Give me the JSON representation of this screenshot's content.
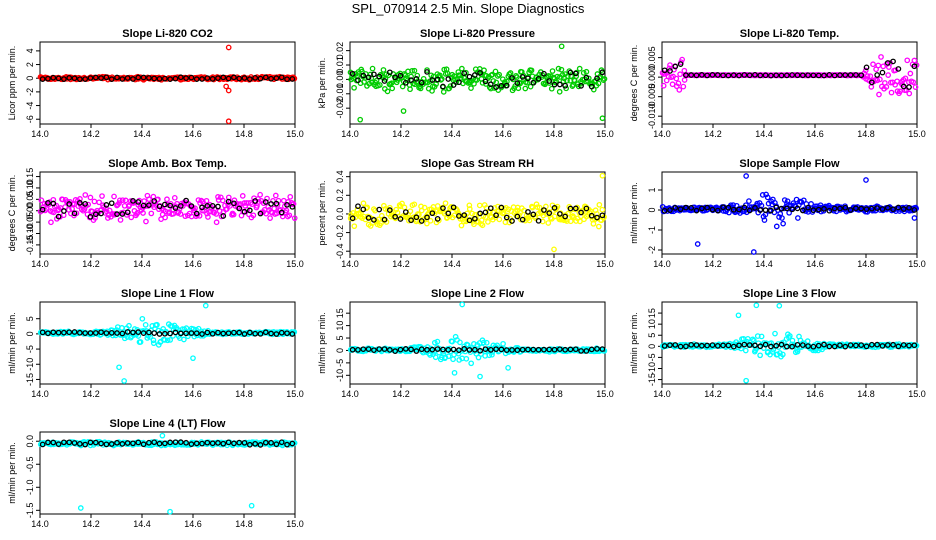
{
  "figure": {
    "title": "SPL_070914  2.5 Min. Slope Diagnostics"
  },
  "colors": {
    "black": "#000000",
    "red": "#ff0000",
    "green": "#00cc00",
    "magenta": "#ff00ff",
    "yellow": "#ffff00",
    "blue": "#0000ff",
    "cyan": "#00ffff"
  },
  "chart_data": [
    {
      "type": "scatter",
      "title": "Slope Li-820 CO2",
      "ylabel": "Licor ppm per min.",
      "xlim": [
        14.0,
        15.0
      ],
      "xticks": [
        "14.0",
        "14.2",
        "14.4",
        "14.6",
        "14.8",
        "15.0"
      ],
      "ylim": [
        -6.7,
        5.3
      ],
      "yticks": [
        -6,
        -4,
        -2,
        0,
        2,
        4
      ],
      "ytick_labels": [
        "-6",
        "-4",
        "-2",
        "0",
        "2",
        "4"
      ],
      "color": "red",
      "pattern": "flat",
      "base": 0,
      "noise": 0.25,
      "ends": 0,
      "outliers": [
        [
          14.74,
          4.5
        ],
        [
          14.74,
          -1.8
        ],
        [
          14.74,
          -6.3
        ],
        [
          14.73,
          -1.2
        ]
      ]
    },
    {
      "type": "scatter",
      "title": "Slope Li-820 Pressure",
      "ylabel": "kPa per min.",
      "xlim": [
        14.0,
        15.0
      ],
      "xticks": [
        "14.0",
        "14.2",
        "14.4",
        "14.6",
        "14.8",
        "15.0"
      ],
      "ylim": [
        -0.031,
        0.026
      ],
      "yticks": [
        -0.02,
        -0.01,
        0.0,
        0.01,
        0.02
      ],
      "ytick_labels": [
        "-0.02",
        "-0.01",
        "0.00",
        "0.01",
        "0.02"
      ],
      "color": "green",
      "pattern": "noisy",
      "base": 0,
      "noise": 0.009,
      "ends": 0,
      "outliers": [
        [
          14.04,
          -0.028
        ],
        [
          14.83,
          0.023
        ],
        [
          14.99,
          -0.027
        ],
        [
          14.21,
          -0.022
        ]
      ]
    },
    {
      "type": "scatter",
      "title": "Slope Li-820 Temp.",
      "ylabel": "degrees C per min.",
      "xlim": [
        14.0,
        15.0
      ],
      "xticks": [
        "14.0",
        "14.2",
        "14.4",
        "14.6",
        "14.8",
        "15.0"
      ],
      "ylim": [
        -0.012,
        0.009
      ],
      "yticks": [
        -0.01,
        -0.005,
        0.0,
        0.005
      ],
      "ytick_labels": [
        "-0.010",
        "-0.005",
        "0.000",
        "0.005"
      ],
      "color": "magenta",
      "pattern": "ends",
      "base": 0.0005,
      "noise": 0.0001,
      "ends": 0.006,
      "outliers": []
    },
    {
      "type": "scatter",
      "title": "Slope Amb. Box Temp.",
      "ylabel": "degrees C per min.",
      "xlim": [
        14.0,
        15.0
      ],
      "xticks": [
        "14.0",
        "14.2",
        "14.4",
        "14.6",
        "14.8",
        "15.0"
      ],
      "ylim": [
        -0.19,
        0.17
      ],
      "yticks": [
        -0.15,
        -0.1,
        -0.05,
        0.0,
        0.05,
        0.1,
        0.15
      ],
      "ytick_labels": [
        "-0.15",
        "-0.10",
        "-0.05",
        "0.00",
        "0.05",
        "0.10",
        "0.15"
      ],
      "color": "magenta",
      "pattern": "noisy",
      "base": 0.01,
      "noise": 0.065,
      "ends": 0,
      "outliers": []
    },
    {
      "type": "scatter",
      "title": "Slope Gas Stream RH",
      "ylabel": "percent per min.",
      "xlim": [
        14.0,
        15.0
      ],
      "xticks": [
        "14.0",
        "14.2",
        "14.4",
        "14.6",
        "14.8",
        "15.0"
      ],
      "ylim": [
        -0.43,
        0.45
      ],
      "yticks": [
        -0.4,
        -0.2,
        0.0,
        0.2,
        0.4
      ],
      "ytick_labels": [
        "-0.4",
        "-0.2",
        "0.0",
        "0.2",
        "0.4"
      ],
      "color": "yellow",
      "pattern": "noisy",
      "base": 0.0,
      "noise": 0.14,
      "ends": 0,
      "outliers": [
        [
          14.99,
          0.41
        ],
        [
          14.8,
          -0.38
        ]
      ]
    },
    {
      "type": "scatter",
      "title": "Slope Sample Flow",
      "ylabel": "ml/min per min.",
      "xlim": [
        14.0,
        15.0
      ],
      "xticks": [
        "14.0",
        "14.2",
        "14.4",
        "14.6",
        "14.8",
        "15.0"
      ],
      "ylim": [
        -2.2,
        1.9
      ],
      "yticks": [
        -2,
        -1,
        0,
        1
      ],
      "ytick_labels": [
        "-2",
        "-1",
        "0",
        "1"
      ],
      "color": "blue",
      "pattern": "center",
      "base": 0.05,
      "noise": 0.15,
      "ends": 0.9,
      "outliers": [
        [
          14.33,
          1.7
        ],
        [
          14.36,
          -2.1
        ],
        [
          14.14,
          -1.7
        ],
        [
          14.8,
          1.5
        ],
        [
          14.99,
          -0.4
        ]
      ]
    },
    {
      "type": "scatter",
      "title": "Slope Line 1 Flow",
      "ylabel": "ml/min per min.",
      "xlim": [
        14.0,
        15.0
      ],
      "xticks": [
        "14.0",
        "14.2",
        "14.4",
        "14.6",
        "14.8",
        "15.0"
      ],
      "ylim": [
        -16.5,
        10.5
      ],
      "yticks": [
        -15,
        -10,
        -5,
        0,
        5
      ],
      "ytick_labels": [
        "-15",
        "-10",
        "-5",
        "0",
        "5"
      ],
      "color": "cyan",
      "pattern": "center",
      "base": 0.3,
      "noise": 0.6,
      "ends": 5.5,
      "outliers": [
        [
          14.65,
          9.3
        ],
        [
          14.33,
          -15.5
        ],
        [
          14.31,
          -11
        ],
        [
          14.6,
          -8
        ]
      ]
    },
    {
      "type": "scatter",
      "title": "Slope Line 2 Flow",
      "ylabel": "ml/min per min.",
      "xlim": [
        14.0,
        15.0
      ],
      "xticks": [
        "14.0",
        "14.2",
        "14.4",
        "14.6",
        "14.8",
        "15.0"
      ],
      "ylim": [
        -13.5,
        19.5
      ],
      "yticks": [
        -10,
        -5,
        0,
        5,
        10,
        15
      ],
      "ytick_labels": [
        "-10",
        "-5",
        "0",
        "5",
        "10",
        "15"
      ],
      "color": "cyan",
      "pattern": "center",
      "base": 0.2,
      "noise": 0.8,
      "ends": 6.5,
      "outliers": [
        [
          14.44,
          18.5
        ],
        [
          14.51,
          -10.5
        ],
        [
          14.41,
          -9
        ],
        [
          14.62,
          -7
        ]
      ]
    },
    {
      "type": "scatter",
      "title": "Slope Line 3 Flow",
      "ylabel": "ml/min per min.",
      "xlim": [
        14.0,
        15.0
      ],
      "xticks": [
        "14.0",
        "14.2",
        "14.4",
        "14.6",
        "14.8",
        "15.0"
      ],
      "ylim": [
        -17,
        20
      ],
      "yticks": [
        -15,
        -10,
        -5,
        0,
        5,
        10,
        15
      ],
      "ytick_labels": [
        "-15",
        "-10",
        "-5",
        "0",
        "5",
        "10",
        "15"
      ],
      "color": "cyan",
      "pattern": "center",
      "base": 0.3,
      "noise": 0.8,
      "ends": 7,
      "outliers": [
        [
          14.33,
          -15.5
        ],
        [
          14.37,
          18.5
        ],
        [
          14.46,
          18.3
        ],
        [
          14.3,
          14
        ]
      ]
    },
    {
      "type": "scatter",
      "title": "Slope Line 4 (LT) Flow",
      "ylabel": "ml/min per min.",
      "xlim": [
        14.0,
        15.0
      ],
      "xticks": [
        "14.0",
        "14.2",
        "14.4",
        "14.6",
        "14.8",
        "15.0"
      ],
      "ylim": [
        -1.58,
        0.2
      ],
      "yticks": [
        -1.5,
        -1.0,
        -0.5,
        0.0
      ],
      "ytick_labels": [
        "-1.5",
        "-1.0",
        "-0.5",
        "0.0"
      ],
      "color": "cyan",
      "pattern": "flat",
      "base": -0.05,
      "noise": 0.05,
      "ends": 0,
      "outliers": [
        [
          14.16,
          -1.45
        ],
        [
          14.51,
          -1.53
        ],
        [
          14.83,
          -1.4
        ],
        [
          14.48,
          0.12
        ]
      ]
    }
  ]
}
